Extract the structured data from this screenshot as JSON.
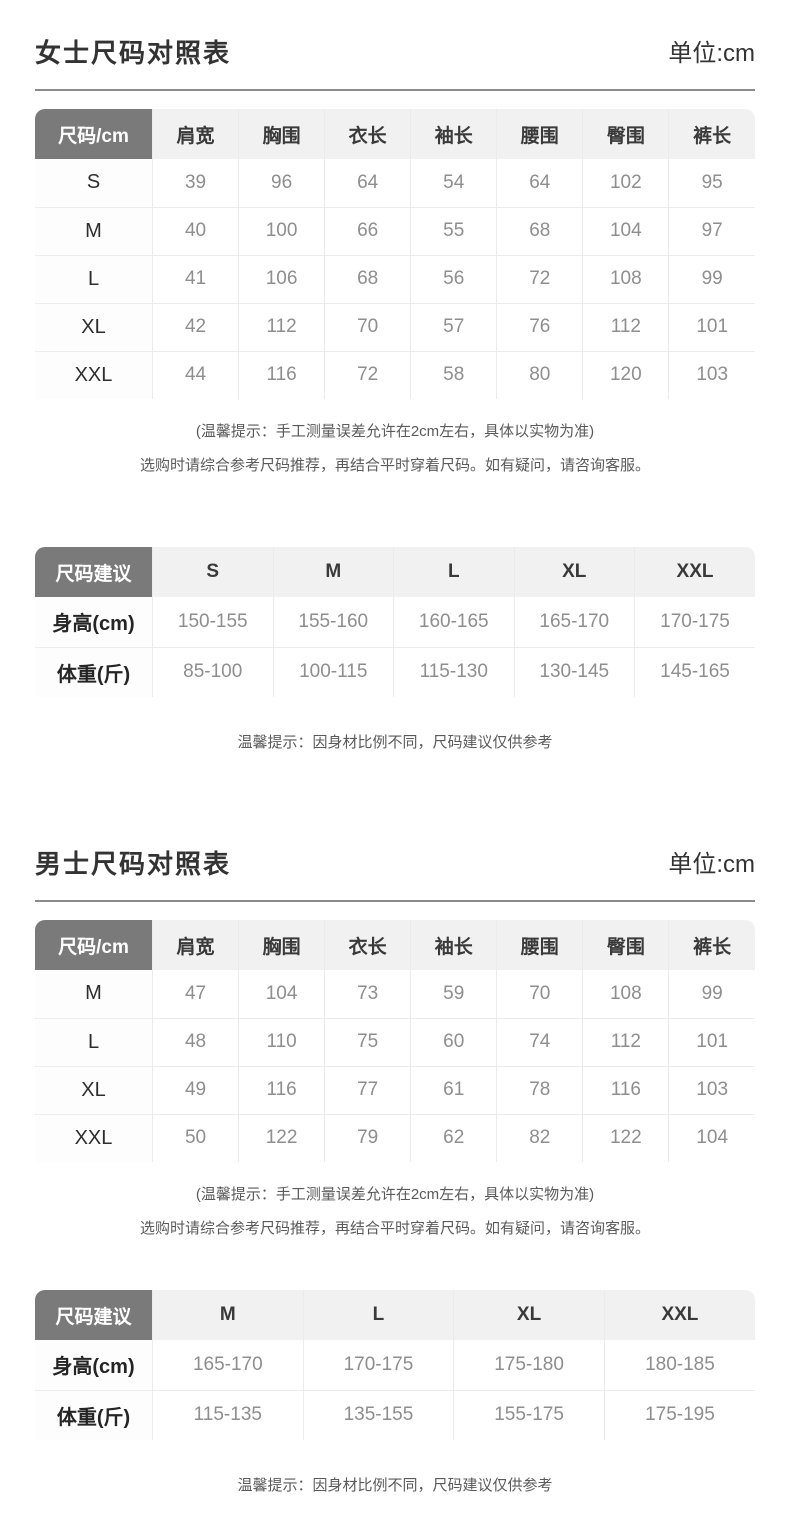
{
  "colors": {
    "corner_cell_bg": "#7a7a7a",
    "header_row_bg": "#f1f1f1",
    "title_text": "#333333",
    "value_text": "#8e8e8e",
    "note_text": "#5a5a5a",
    "divider": "#8b8b8b",
    "grid_line": "#ececec"
  },
  "women": {
    "title": "女士尺码对照表",
    "unit": "单位:cm",
    "size_table": {
      "corner": "尺码/cm",
      "columns": [
        "肩宽",
        "胸围",
        "衣长",
        "袖长",
        "腰围",
        "臀围",
        "裤长"
      ],
      "rows": [
        {
          "label": "S",
          "values": [
            "39",
            "96",
            "64",
            "54",
            "64",
            "102",
            "95"
          ]
        },
        {
          "label": "M",
          "values": [
            "40",
            "100",
            "66",
            "55",
            "68",
            "104",
            "97"
          ]
        },
        {
          "label": "L",
          "values": [
            "41",
            "106",
            "68",
            "56",
            "72",
            "108",
            "99"
          ]
        },
        {
          "label": "XL",
          "values": [
            "42",
            "112",
            "70",
            "57",
            "76",
            "112",
            "101"
          ]
        },
        {
          "label": "XXL",
          "values": [
            "44",
            "116",
            "72",
            "58",
            "80",
            "120",
            "103"
          ]
        }
      ]
    },
    "notes": [
      "(温馨提示：手工测量误差允许在2cm左右，具体以实物为准)",
      "选购时请综合参考尺码推荐，再结合平时穿着尺码。如有疑问，请咨询客服。"
    ],
    "suggest_table": {
      "corner": "尺码建议",
      "columns": [
        "S",
        "M",
        "L",
        "XL",
        "XXL"
      ],
      "rows": [
        {
          "label": "身高(cm)",
          "values": [
            "150-155",
            "155-160",
            "160-165",
            "165-170",
            "170-175"
          ]
        },
        {
          "label": "体重(斤)",
          "values": [
            "85-100",
            "100-115",
            "115-130",
            "130-145",
            "145-165"
          ]
        }
      ]
    },
    "suggest_note": "温馨提示：因身材比例不同，尺码建议仅供参考"
  },
  "men": {
    "title": "男士尺码对照表",
    "unit": "单位:cm",
    "size_table": {
      "corner": "尺码/cm",
      "columns": [
        "肩宽",
        "胸围",
        "衣长",
        "袖长",
        "腰围",
        "臀围",
        "裤长"
      ],
      "rows": [
        {
          "label": "M",
          "values": [
            "47",
            "104",
            "73",
            "59",
            "70",
            "108",
            "99"
          ]
        },
        {
          "label": "L",
          "values": [
            "48",
            "110",
            "75",
            "60",
            "74",
            "112",
            "101"
          ]
        },
        {
          "label": "XL",
          "values": [
            "49",
            "116",
            "77",
            "61",
            "78",
            "116",
            "103"
          ]
        },
        {
          "label": "XXL",
          "values": [
            "50",
            "122",
            "79",
            "62",
            "82",
            "122",
            "104"
          ]
        }
      ]
    },
    "notes": [
      "(温馨提示：手工测量误差允许在2cm左右，具体以实物为准)",
      "选购时请综合参考尺码推荐，再结合平时穿着尺码。如有疑问，请咨询客服。"
    ],
    "suggest_table": {
      "corner": "尺码建议",
      "columns": [
        "M",
        "L",
        "XL",
        "XXL"
      ],
      "rows": [
        {
          "label": "身高(cm)",
          "values": [
            "165-170",
            "170-175",
            "175-180",
            "180-185"
          ]
        },
        {
          "label": "体重(斤)",
          "values": [
            "115-135",
            "135-155",
            "155-175",
            "175-195"
          ]
        }
      ]
    },
    "suggest_note": "温馨提示：因身材比例不同，尺码建议仅供参考"
  }
}
